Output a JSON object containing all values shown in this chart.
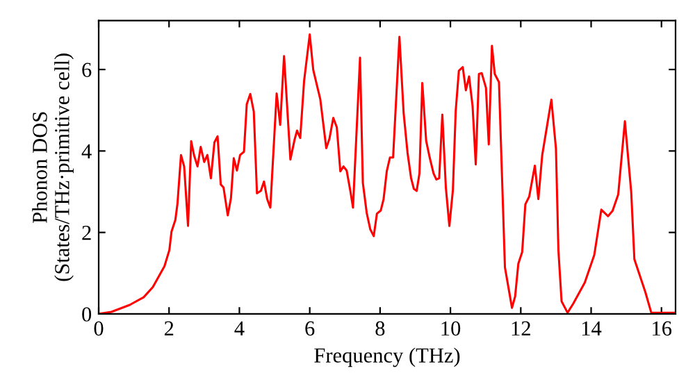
{
  "chart_data": {
    "type": "line",
    "xlabel": "Frequency (THz)",
    "ylabel": "Phonon DOS\n(States/THz·primitive cell)",
    "xlim": [
      0,
      16.4
    ],
    "ylim": [
      0,
      7.2
    ],
    "xticks": [
      0,
      2,
      4,
      6,
      8,
      10,
      12,
      14,
      16
    ],
    "yticks": [
      0,
      2,
      4,
      6
    ],
    "grid": false,
    "marker": "none",
    "line_style": "solid",
    "series": [
      {
        "color": "#ff0000",
        "x": [
          0,
          0.36,
          0.88,
          1.28,
          1.54,
          1.87,
          2.01,
          2.07,
          2.18,
          2.24,
          2.34,
          2.43,
          2.54,
          2.63,
          2.71,
          2.81,
          2.9,
          3.0,
          3.09,
          3.19,
          3.29,
          3.38,
          3.47,
          3.55,
          3.67,
          3.76,
          3.84,
          3.93,
          4.02,
          4.13,
          4.21,
          4.31,
          4.41,
          4.5,
          4.61,
          4.7,
          4.79,
          4.88,
          5.06,
          5.16,
          5.27,
          5.45,
          5.57,
          5.64,
          5.73,
          5.84,
          6.0,
          6.1,
          6.3,
          6.47,
          6.56,
          6.67,
          6.77,
          6.87,
          6.96,
          7.05,
          7.16,
          7.23,
          7.43,
          7.51,
          7.62,
          7.72,
          7.82,
          7.91,
          8.02,
          8.1,
          8.19,
          8.28,
          8.37,
          8.55,
          8.67,
          8.78,
          8.88,
          8.96,
          9.04,
          9.12,
          9.2,
          9.31,
          9.41,
          9.52,
          9.6,
          9.68,
          9.77,
          9.87,
          9.97,
          10.07,
          10.15,
          10.24,
          10.35,
          10.44,
          10.53,
          10.63,
          10.72,
          10.81,
          10.89,
          11.01,
          11.09,
          11.18,
          11.26,
          11.38,
          11.55,
          11.75,
          11.84,
          11.93,
          12.04,
          12.13,
          12.24,
          12.4,
          12.5,
          12.61,
          12.87,
          13.0,
          13.07,
          13.16,
          13.33,
          13.49,
          13.82,
          14.09,
          14.29,
          14.48,
          14.61,
          14.77,
          14.96,
          15.14,
          15.23,
          15.54,
          15.71,
          16.4
        ],
        "values": [
          0,
          0.05,
          0.22,
          0.41,
          0.66,
          1.17,
          1.57,
          2.02,
          2.31,
          2.71,
          3.9,
          3.62,
          2.16,
          4.24,
          3.9,
          3.62,
          4.1,
          3.73,
          3.9,
          3.33,
          4.21,
          4.36,
          3.18,
          3.1,
          2.42,
          2.84,
          3.82,
          3.52,
          3.9,
          3.98,
          5.15,
          5.4,
          4.96,
          2.96,
          3.02,
          3.25,
          2.82,
          2.61,
          5.41,
          4.64,
          6.33,
          3.79,
          4.28,
          4.5,
          4.32,
          5.72,
          6.86,
          5.99,
          5.27,
          4.07,
          4.3,
          4.81,
          4.58,
          3.5,
          3.62,
          3.52,
          2.99,
          2.61,
          6.29,
          3.22,
          2.48,
          2.08,
          1.91,
          2.46,
          2.54,
          2.82,
          3.5,
          3.84,
          3.84,
          6.8,
          4.93,
          3.96,
          3.34,
          3.07,
          3.02,
          3.45,
          5.67,
          4.25,
          3.84,
          3.45,
          3.3,
          3.33,
          4.89,
          3.1,
          2.16,
          3.04,
          4.98,
          5.97,
          6.06,
          5.49,
          5.83,
          5.1,
          3.67,
          5.89,
          5.91,
          5.55,
          4.16,
          6.58,
          5.89,
          5.69,
          1.14,
          0.15,
          0.43,
          1.23,
          1.52,
          2.69,
          2.88,
          3.64,
          2.82,
          3.9,
          5.26,
          4.06,
          1.56,
          0.31,
          0.03,
          0.25,
          0.77,
          1.45,
          2.56,
          2.4,
          2.53,
          2.93,
          4.73,
          2.99,
          1.34,
          0.54,
          0.03,
          0.03
        ]
      }
    ]
  }
}
